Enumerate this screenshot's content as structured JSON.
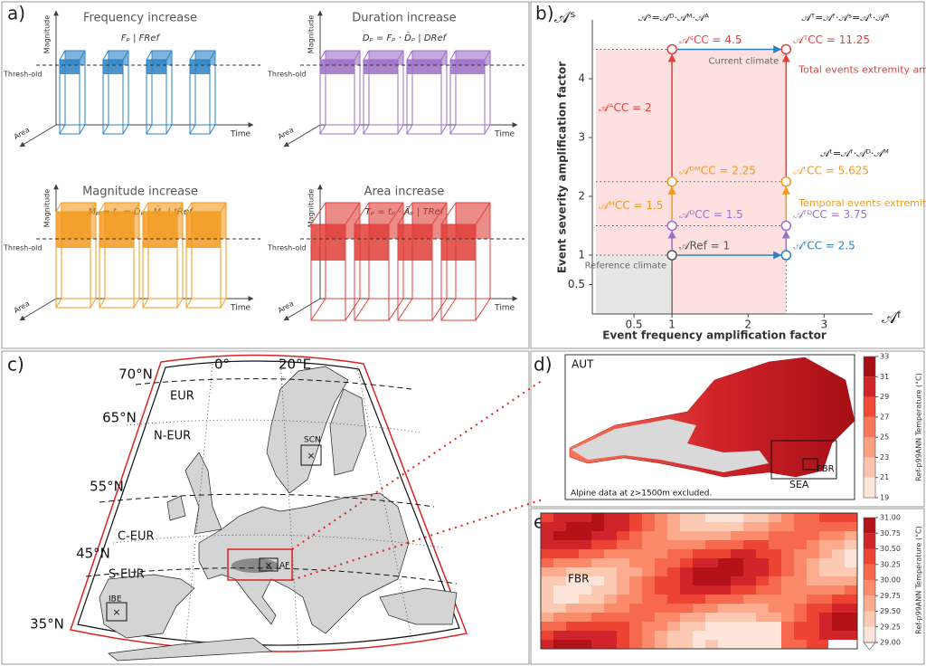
{
  "panel_a": {
    "label": "a)",
    "threshold_label": "Thresh-old",
    "axis_labels": {
      "magnitude": "Magnitude",
      "time": "Time",
      "area": "Area"
    },
    "subpanels": [
      {
        "title": "Frequency increase",
        "formula": "Fₚ | FRef",
        "color": "#2b83c6"
      },
      {
        "title": "Duration increase",
        "formula": "Dₚ = Fₚ · D̄ₚ | DRef",
        "color": "#9b6fc7"
      },
      {
        "title": "Magnitude increase",
        "formula": "Mₚ = tₚ = Dₚ · M̄ₚ | tRef",
        "color": "#f39a1e"
      },
      {
        "title": "Area increase",
        "formula": "Tₚ = tₚ · Āₚ | TRef",
        "color": "#e0403a"
      }
    ]
  },
  "chart_data": {
    "type": "scatter",
    "label": "b)",
    "x_label": "Event frequency amplification factor",
    "y_label": "Event severity amplification factor",
    "x_symbol": "𝒜ᶠ",
    "y_symbol": "𝒜ˢ",
    "xlim": [
      0,
      3.4
    ],
    "ylim": [
      0,
      5
    ],
    "xticks": [
      0.5,
      1,
      2,
      3
    ],
    "yticks": [
      0.5,
      1,
      2,
      3,
      4
    ],
    "points": [
      {
        "x": 1,
        "y": 1,
        "label": "𝒜Ref = 1",
        "color": "#555555"
      },
      {
        "x": 1,
        "y": 1.5,
        "label": "𝒜ᴰCC = 1.5",
        "color": "#9b6fc7"
      },
      {
        "x": 1,
        "y": 2.25,
        "label": "𝒜ᴰᴹCC = 2.25",
        "color": "#f39a1e"
      },
      {
        "x": 1,
        "y": 4.5,
        "label": "𝒜ˢCC = 4.5",
        "color": "#e0403a"
      },
      {
        "x": 2.5,
        "y": 1,
        "label": "𝒜ᶠCC = 2.5",
        "color": "#2b83c6"
      },
      {
        "x": 2.5,
        "y": 1.5,
        "label": "𝒜ᶠᴰCC = 3.75",
        "color": "#9b6fc7"
      },
      {
        "x": 2.5,
        "y": 2.25,
        "label": "𝒜ᵗCC = 5.625",
        "color": "#f39a1e"
      },
      {
        "x": 2.5,
        "y": 4.5,
        "label": "𝒜ᵀCC = 11.25",
        "color": "#e0403a"
      }
    ],
    "annotations": [
      "𝒜ᴹCC = 1.5",
      "𝒜ᴬCC = 2",
      "Reference climate",
      "Current climate",
      "Total events extremity ampl.",
      "Temporal events extremity ampl.",
      "𝒜ˢ=𝒜ᴰ·𝒜ᴹ·𝒜ᴬ",
      "𝒜ᵀ=𝒜ᶠ·𝒜ˢ=𝒜ᵗ·𝒜ᴬ",
      "𝒜ᵗ=𝒜ᶠ·𝒜ᴰ·𝒜ᴹ"
    ]
  },
  "panel_c": {
    "label": "c)",
    "lon_labels": [
      "0°",
      "20°E"
    ],
    "lat_labels": [
      "70°N",
      "65°N",
      "55°N",
      "45°N",
      "35°N"
    ],
    "regions": [
      "EUR",
      "N-EUR",
      "C-EUR",
      "S-EUR"
    ],
    "subregions": [
      "SCN",
      "AF",
      "IBE"
    ]
  },
  "panel_d": {
    "label": "d)",
    "region": "AUT",
    "boxes": [
      "SEA",
      "FBR"
    ],
    "note": "Alpine data at z>1500m excluded.",
    "colorbar": {
      "label": "Ref-p99ANN Temperature (°C)",
      "ticks": [
        19,
        21,
        23,
        25,
        27,
        29,
        31,
        33
      ],
      "colors": [
        "#fde5d9",
        "#fcc4ad",
        "#fc9f81",
        "#f9785b",
        "#ef4a36",
        "#d2232a",
        "#a50f15"
      ]
    }
  },
  "panel_e": {
    "label": "e)",
    "region": "FBR",
    "colorbar": {
      "label": "Ref-p99ANN Temperature (°C)",
      "ticks": [
        {
          "value": 29,
          "label": "29.00"
        },
        {
          "value": 29.25,
          "label": "29.25"
        },
        {
          "value": 29.5,
          "label": "29.50"
        },
        {
          "value": 29.75,
          "label": "29.75"
        },
        {
          "value": 30,
          "label": "30.00"
        },
        {
          "value": 30.25,
          "label": "30.25"
        },
        {
          "value": 30.5,
          "label": "30.50"
        },
        {
          "value": 30.75,
          "label": "30.75"
        },
        {
          "value": 31,
          "label": "31.00"
        }
      ],
      "colors": [
        "#fde5d9",
        "#fcc9b3",
        "#fcab8f",
        "#fb8a6a",
        "#f6694c",
        "#ec4332",
        "#d1232a",
        "#b21218"
      ]
    }
  }
}
